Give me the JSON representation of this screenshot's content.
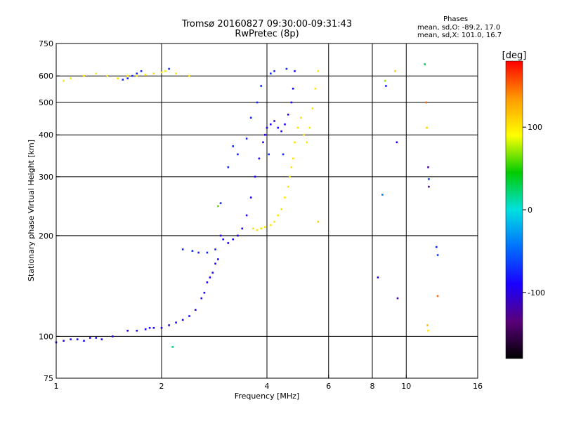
{
  "title_line1": "Tromsø 20160827 09:30:00-09:31:43",
  "title_line2": "RwPretec (8p)",
  "info": {
    "heading": "Phases",
    "line_o": "mean, sd,O: -89.2, 17.0",
    "line_x": "mean, sd,X: 101.0, 16.7"
  },
  "chart_data": {
    "type": "scatter",
    "xlabel": "Frequency [MHz]",
    "ylabel": "Stationary phase Virtual Height [km]",
    "x_scale": "log",
    "y_scale": "log",
    "xlim": [
      1,
      16
    ],
    "ylim": [
      75,
      750
    ],
    "x_ticks": [
      1,
      2,
      4,
      6,
      8,
      10,
      16
    ],
    "y_ticks": [
      75,
      100,
      200,
      300,
      400,
      500,
      600,
      750
    ],
    "grid": true,
    "colorbar": {
      "label": "[deg]",
      "range": [
        -180,
        180
      ],
      "ticks": [
        -100,
        0,
        100
      ],
      "colors": [
        "#000000",
        "#5a007a",
        "#1a00ff",
        "#0070ff",
        "#00e0e0",
        "#00cc00",
        "#ffff00",
        "#ff9900",
        "#ff0000"
      ]
    },
    "series": [
      {
        "polarization": "O",
        "phase_deg": -89,
        "x": [
          1.0,
          1.05,
          1.1,
          1.15,
          1.2,
          1.25,
          1.3,
          1.35,
          1.45,
          1.6,
          1.7,
          1.8,
          1.85,
          1.9,
          2.0,
          2.1,
          2.2,
          2.3,
          2.4,
          2.5,
          2.6,
          2.65,
          2.7,
          2.75,
          2.8,
          2.85,
          2.9,
          2.95,
          3.0,
          3.1,
          3.2,
          3.3,
          3.4,
          3.5,
          3.6,
          3.7,
          3.8,
          3.9,
          3.95,
          4.0,
          4.1,
          4.2,
          4.3,
          4.4,
          4.5,
          4.6,
          4.7,
          4.75,
          4.8
        ],
        "y": [
          96,
          97,
          98,
          98,
          97,
          99,
          99,
          98,
          100,
          104,
          104,
          105,
          106,
          106,
          106,
          108,
          110,
          112,
          115,
          120,
          130,
          135,
          145,
          150,
          155,
          165,
          170,
          200,
          195,
          190,
          195,
          200,
          210,
          230,
          260,
          300,
          340,
          380,
          400,
          420,
          430,
          440,
          420,
          410,
          430,
          460,
          500,
          550,
          620
        ]
      },
      {
        "polarization": "O-spread",
        "phase_deg": -75,
        "x": [
          1.55,
          1.6,
          1.65,
          1.7,
          1.75,
          2.1,
          2.3,
          2.45,
          2.55,
          2.7,
          2.85,
          2.95,
          3.1,
          3.2,
          3.3,
          3.5,
          3.6,
          3.75,
          3.85,
          4.05,
          4.1,
          4.2,
          4.45,
          4.55
        ],
        "y": [
          585,
          590,
          600,
          610,
          620,
          630,
          182,
          180,
          178,
          178,
          182,
          250,
          320,
          370,
          350,
          390,
          450,
          500,
          560,
          350,
          610,
          620,
          350,
          630
        ]
      },
      {
        "polarization": "X",
        "phase_deg": 101,
        "x": [
          1.05,
          1.1,
          1.2,
          1.3,
          1.4,
          1.5,
          1.6,
          1.7,
          1.8,
          1.9,
          2.0,
          2.05,
          2.2,
          2.4,
          3.65,
          3.75,
          3.85,
          3.95,
          4.1,
          4.2,
          4.3,
          4.4,
          4.5,
          4.6,
          4.65,
          4.7,
          4.75,
          4.8,
          4.9,
          5.0,
          5.1,
          5.2,
          5.3,
          5.4,
          5.5,
          5.6
        ],
        "y": [
          580,
          590,
          600,
          610,
          600,
          590,
          600,
          600,
          605,
          610,
          615,
          620,
          610,
          600,
          210,
          208,
          210,
          212,
          215,
          220,
          230,
          240,
          260,
          280,
          300,
          320,
          340,
          380,
          420,
          450,
          400,
          380,
          420,
          480,
          550,
          620
        ]
      }
    ],
    "scattered_points": [
      {
        "x": 2.15,
        "y": 93,
        "phase_deg": 20
      },
      {
        "x": 2.9,
        "y": 245,
        "phase_deg": 60
      },
      {
        "x": 5.6,
        "y": 220,
        "phase_deg": 110
      },
      {
        "x": 8.3,
        "y": 150,
        "phase_deg": -95
      },
      {
        "x": 8.55,
        "y": 265,
        "phase_deg": -40
      },
      {
        "x": 8.7,
        "y": 580,
        "phase_deg": 70
      },
      {
        "x": 8.75,
        "y": 560,
        "phase_deg": -80
      },
      {
        "x": 9.3,
        "y": 620,
        "phase_deg": 110
      },
      {
        "x": 9.4,
        "y": 380,
        "phase_deg": -95
      },
      {
        "x": 9.45,
        "y": 130,
        "phase_deg": -120
      },
      {
        "x": 11.3,
        "y": 650,
        "phase_deg": 30
      },
      {
        "x": 11.4,
        "y": 500,
        "phase_deg": 150
      },
      {
        "x": 11.45,
        "y": 420,
        "phase_deg": 110
      },
      {
        "x": 11.55,
        "y": 320,
        "phase_deg": -120
      },
      {
        "x": 11.6,
        "y": 295,
        "phase_deg": -60
      },
      {
        "x": 11.6,
        "y": 280,
        "phase_deg": -130
      },
      {
        "x": 11.5,
        "y": 108,
        "phase_deg": 120
      },
      {
        "x": 11.55,
        "y": 104,
        "phase_deg": 100
      },
      {
        "x": 12.2,
        "y": 185,
        "phase_deg": -80
      },
      {
        "x": 12.3,
        "y": 175,
        "phase_deg": -70
      },
      {
        "x": 12.3,
        "y": 132,
        "phase_deg": 150
      }
    ]
  }
}
